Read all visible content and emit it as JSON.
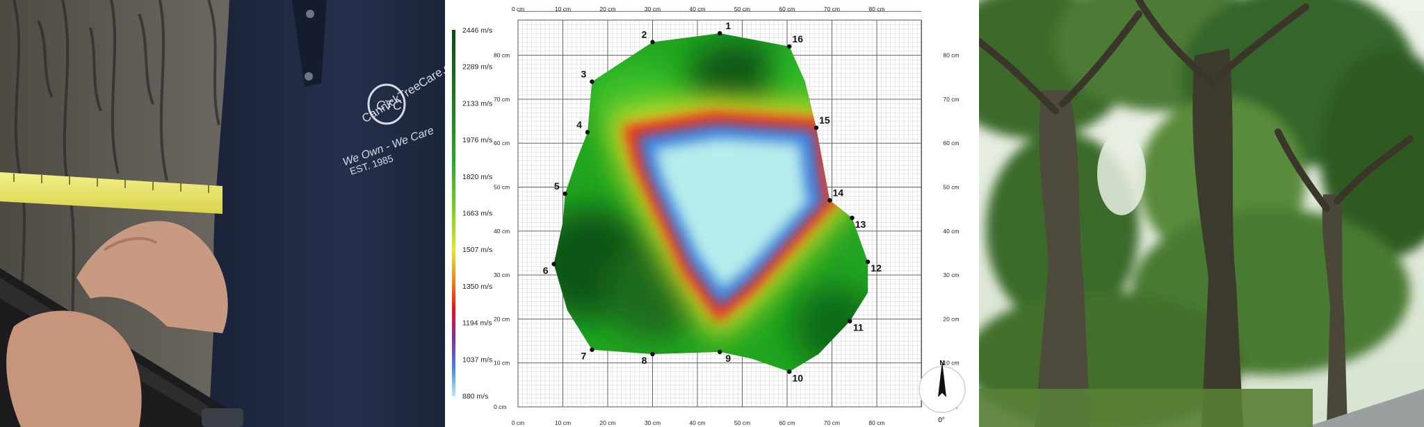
{
  "panels": {
    "left_photo": "",
    "right_photo": ""
  },
  "shirt_logo": {
    "line1": "CannickTreeCare.co.uk",
    "monogram": "CTC",
    "line2": "We Own - We Care",
    "line3": "EST. 1985"
  },
  "chart_data": {
    "type": "heatmap",
    "title": "",
    "xlabel": "",
    "ylabel": "",
    "xlim": [
      0,
      90
    ],
    "ylim": [
      0,
      90
    ],
    "x_ticks": [
      {
        "v": 0,
        "label": "0 cm"
      },
      {
        "v": 10,
        "label": "10 cm"
      },
      {
        "v": 20,
        "label": "20 cm"
      },
      {
        "v": 30,
        "label": "30 cm"
      },
      {
        "v": 40,
        "label": "40 cm"
      },
      {
        "v": 50,
        "label": "50 cm"
      },
      {
        "v": 60,
        "label": "60 cm"
      },
      {
        "v": 70,
        "label": "70 cm"
      },
      {
        "v": 80,
        "label": "80 cm"
      }
    ],
    "y_ticks": [
      {
        "v": 0,
        "label": "0 cm"
      },
      {
        "v": 10,
        "label": "10 cm"
      },
      {
        "v": 20,
        "label": "20 cm"
      },
      {
        "v": 30,
        "label": "30 cm"
      },
      {
        "v": 40,
        "label": "40 cm"
      },
      {
        "v": 50,
        "label": "50 cm"
      },
      {
        "v": 60,
        "label": "60 cm"
      },
      {
        "v": 70,
        "label": "70 cm"
      },
      {
        "v": 80,
        "label": "80 cm"
      }
    ],
    "colorbar": {
      "min": 880,
      "max": 2446,
      "unit": "m/s",
      "labels": [
        "2446 m/s",
        "2289 m/s",
        "2133 m/s",
        "1976 m/s",
        "1820 m/s",
        "1663 m/s",
        "1507 m/s",
        "1350 m/s",
        "1194 m/s",
        "1037 m/s",
        "880 m/s"
      ]
    },
    "sensors": [
      {
        "id": "1",
        "x": 45,
        "y": 85
      },
      {
        "id": "2",
        "x": 30,
        "y": 83
      },
      {
        "id": "3",
        "x": 16.5,
        "y": 74
      },
      {
        "id": "4",
        "x": 15.5,
        "y": 62.5
      },
      {
        "id": "5",
        "x": 10.5,
        "y": 48.5
      },
      {
        "id": "6",
        "x": 8,
        "y": 32.5
      },
      {
        "id": "7",
        "x": 16.5,
        "y": 13
      },
      {
        "id": "8",
        "x": 30,
        "y": 12
      },
      {
        "id": "9",
        "x": 45,
        "y": 12.5
      },
      {
        "id": "10",
        "x": 60.5,
        "y": 8
      },
      {
        "id": "11",
        "x": 74,
        "y": 19.5
      },
      {
        "id": "12",
        "x": 78,
        "y": 33
      },
      {
        "id": "13",
        "x": 74.5,
        "y": 43
      },
      {
        "id": "14",
        "x": 69.5,
        "y": 47
      },
      {
        "id": "15",
        "x": 66.5,
        "y": 63.5
      },
      {
        "id": "16",
        "x": 60.5,
        "y": 82
      }
    ],
    "outline": [
      [
        45,
        85
      ],
      [
        60.5,
        82
      ],
      [
        64,
        74
      ],
      [
        66.5,
        63.5
      ],
      [
        69.5,
        47
      ],
      [
        74.5,
        43
      ],
      [
        78,
        33
      ],
      [
        78,
        26
      ],
      [
        74,
        19.5
      ],
      [
        67,
        12
      ],
      [
        60.5,
        8
      ],
      [
        52,
        11
      ],
      [
        45,
        12.5
      ],
      [
        30,
        12
      ],
      [
        16.5,
        13
      ],
      [
        11,
        22
      ],
      [
        8,
        32.5
      ],
      [
        10,
        42
      ],
      [
        10.5,
        48.5
      ],
      [
        13,
        56
      ],
      [
        15.5,
        62.5
      ],
      [
        16.5,
        74
      ],
      [
        30,
        83
      ]
    ],
    "low_velocity_region": [
      [
        26,
        62
      ],
      [
        44,
        65
      ],
      [
        66.5,
        63.5
      ],
      [
        68,
        50
      ],
      [
        69,
        47
      ],
      [
        60,
        37
      ],
      [
        52,
        28
      ],
      [
        45,
        22
      ],
      [
        38,
        32
      ],
      [
        32,
        45
      ],
      [
        28,
        54
      ]
    ],
    "north": {
      "label": "N",
      "angle_label": "0°"
    }
  }
}
